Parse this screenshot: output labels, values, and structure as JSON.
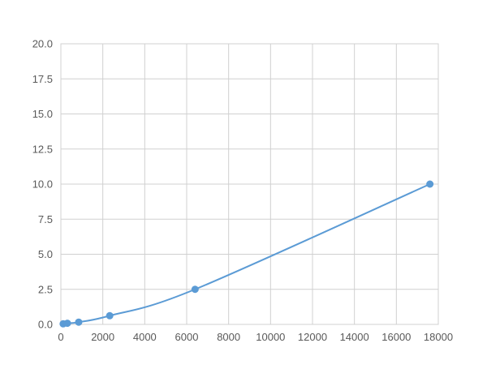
{
  "chart_data": {
    "type": "scatter",
    "title": "",
    "xlabel": "",
    "ylabel": "",
    "xlim": [
      0,
      18000
    ],
    "ylim": [
      0,
      20
    ],
    "xticks": [
      0,
      2000,
      4000,
      6000,
      8000,
      10000,
      12000,
      14000,
      16000,
      18000
    ],
    "yticks": [
      "0.0",
      "2.5",
      "5.0",
      "7.5",
      "10.0",
      "12.5",
      "15.0",
      "17.5",
      "20.0"
    ],
    "grid": true,
    "legend": "none",
    "color": "#5b9bd5",
    "points": [
      {
        "x": 110,
        "y": 0.04
      },
      {
        "x": 310,
        "y": 0.08
      },
      {
        "x": 850,
        "y": 0.16
      },
      {
        "x": 2330,
        "y": 0.62
      },
      {
        "x": 6400,
        "y": 2.5
      },
      {
        "x": 17600,
        "y": 10.0
      }
    ],
    "trendline": "smooth"
  }
}
